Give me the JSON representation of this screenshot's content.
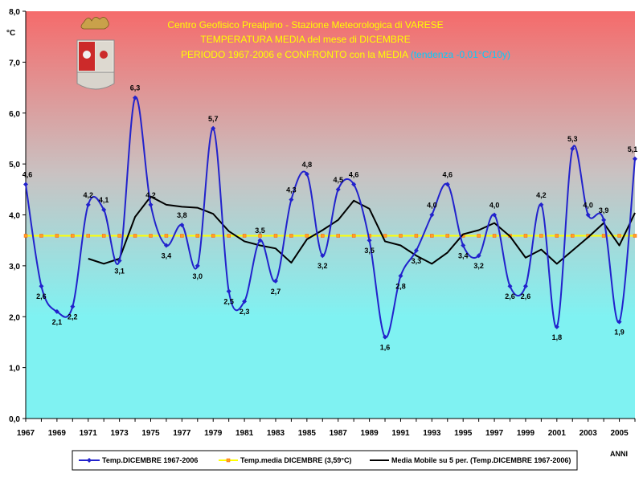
{
  "chart_data": {
    "type": "line",
    "title_lines": [
      "Centro Geofisico Prealpino - Stazione Meteorologica di VARESE",
      "TEMPERATURA MEDIA del mese di DICEMBRE",
      "PERIODO 1967-2006 e CONFRONTO con la MEDIA"
    ],
    "title_trend": "(tendenza -0,01°C/10y)",
    "ylabel": "°C",
    "xlabel": "ANNI",
    "ylim": [
      0,
      8
    ],
    "yticks": [
      "0,0",
      "1,0",
      "2,0",
      "3,0",
      "4,0",
      "5,0",
      "6,0",
      "7,0",
      "8,0"
    ],
    "xlim": [
      1967,
      2006
    ],
    "xticks": [
      "1967",
      "1969",
      "1971",
      "1973",
      "1975",
      "1977",
      "1979",
      "1981",
      "1983",
      "1985",
      "1987",
      "1989",
      "1991",
      "1993",
      "1995",
      "1997",
      "1999",
      "2001",
      "2003",
      "2005"
    ],
    "colors": {
      "temp_series": "#2222cc",
      "mean_line": "#ffff00",
      "moving_avg": "#000000",
      "bg_top": "#f56b6b",
      "bg_bottom": "#7ff2f2"
    },
    "series": [
      {
        "name": "Temp.DICEMBRE 1967-2006",
        "x": [
          1967,
          1968,
          1969,
          1970,
          1971,
          1972,
          1973,
          1974,
          1975,
          1976,
          1977,
          1978,
          1979,
          1980,
          1981,
          1982,
          1983,
          1984,
          1985,
          1986,
          1987,
          1988,
          1989,
          1990,
          1991,
          1992,
          1993,
          1994,
          1995,
          1996,
          1997,
          1998,
          1999,
          2000,
          2001,
          2002,
          2003,
          2004,
          2005,
          2006
        ],
        "values": [
          4.6,
          2.6,
          2.1,
          2.2,
          4.2,
          4.1,
          3.1,
          6.3,
          4.2,
          3.4,
          3.8,
          3.0,
          5.7,
          2.5,
          2.3,
          3.5,
          2.7,
          4.3,
          4.8,
          3.2,
          4.5,
          4.6,
          3.5,
          1.6,
          2.8,
          3.3,
          4.0,
          4.6,
          3.4,
          3.2,
          4.0,
          2.6,
          2.6,
          4.2,
          1.8,
          5.3,
          4.0,
          3.9,
          1.9,
          5.1
        ],
        "labels": [
          "4,6",
          "2,6",
          "2,1",
          "2,2",
          "4,2",
          "4,1",
          "3,1",
          "6,3",
          "4,2",
          "3,4",
          "3,8",
          "3,0",
          "5,7",
          "2,5",
          "2,3",
          "3,5",
          "2,7",
          "4,3",
          "4,8",
          "3,2",
          "4,5",
          "4,6",
          "3,5",
          "1,6",
          "2,8",
          "3,3",
          "4,0",
          "4,6",
          "3,4",
          "3,2",
          "4,0",
          "2,6",
          "2,6",
          "4,2",
          "1,8",
          "5,3",
          "4,0",
          "3,9",
          "1,9",
          "5,1"
        ]
      },
      {
        "name": "Temp.media DICEMBRE (3,59°C)",
        "value": 3.59
      },
      {
        "name": "Media Mobile su 5 per. (Temp.DICEMBRE 1967-2006)",
        "x": [
          1971,
          1972,
          1973,
          1974,
          1975,
          1976,
          1977,
          1978,
          1979,
          1980,
          1981,
          1982,
          1983,
          1984,
          1985,
          1986,
          1987,
          1988,
          1989,
          1990,
          1991,
          1992,
          1993,
          1994,
          1995,
          1996,
          1997,
          1998,
          1999,
          2000,
          2001,
          2002,
          2003,
          2004,
          2005,
          2006
        ],
        "values": [
          3.14,
          3.04,
          3.14,
          3.96,
          4.36,
          4.2,
          4.16,
          4.14,
          4.02,
          3.68,
          3.48,
          3.4,
          3.34,
          3.06,
          3.52,
          3.7,
          3.9,
          4.28,
          4.12,
          3.48,
          3.4,
          3.2,
          3.04,
          3.26,
          3.62,
          3.7,
          3.84,
          3.58,
          3.16,
          3.32,
          3.04,
          3.3,
          3.56,
          3.84,
          3.4,
          4.04
        ]
      }
    ],
    "legend_position": "bottom"
  }
}
